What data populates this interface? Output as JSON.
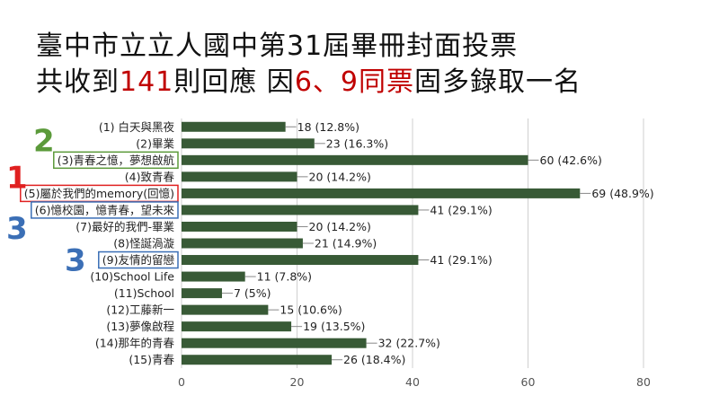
{
  "titles": {
    "line1": "臺中市立立人國中第31屆畢冊封面投票",
    "line2": {
      "p1": "共收到",
      "n1": "141",
      "p2": "則回應 因",
      "n2": "6、9同票",
      "p3": "固多錄取一名"
    }
  },
  "colors": {
    "bar": "#385a36",
    "title_accent": "#c00000",
    "rank1": "#e02020",
    "rank2": "#5b9a3a",
    "rank3": "#3b6fb6"
  },
  "annotations": [
    {
      "label": "1",
      "category_index": 4,
      "color": "rank1"
    },
    {
      "label": "2",
      "category_index": 2,
      "color": "rank2"
    },
    {
      "label": "3",
      "category_index": 5,
      "color": "rank3"
    },
    {
      "label": "3",
      "category_index": 8,
      "color": "rank3"
    }
  ],
  "chart_data": {
    "type": "bar",
    "orientation": "horizontal",
    "categories": [
      "(1) 白天與黑夜",
      "(2)畢業",
      "(3)青春之憶，夢想啟航",
      "(4)致青春",
      "(5)屬於我們的memory(回憶)",
      "(6)憶校園，憶青春，望未來",
      "(7)最好的我們-畢業",
      "(8)怪誕渦漩",
      "(9)友情的留戀",
      "(10)School Life",
      "(11)School",
      "(12)工藤新一",
      "(13)夢像啟程",
      "(14)那年的青春",
      "(15)青春"
    ],
    "values": [
      18,
      23,
      60,
      20,
      69,
      41,
      20,
      21,
      41,
      11,
      7,
      15,
      19,
      32,
      26
    ],
    "value_labels": [
      "18 (12.8%)",
      "23 (16.3%)",
      "60 (42.6%)",
      "20 (14.2%)",
      "69 (48.9%)",
      "41 (29.1%)",
      "20 (14.2%)",
      "21 (14.9%)",
      "41 (29.1%)",
      "11 (7.8%)",
      "7 (5%)",
      "15 (10.6%)",
      "19 (13.5%)",
      "32 (22.7%)",
      "26 (18.4%)"
    ],
    "xlim": [
      0,
      80
    ],
    "xticks": [
      0,
      20,
      40,
      60,
      80
    ],
    "grid": true,
    "title": "",
    "xlabel": "",
    "ylabel": ""
  }
}
